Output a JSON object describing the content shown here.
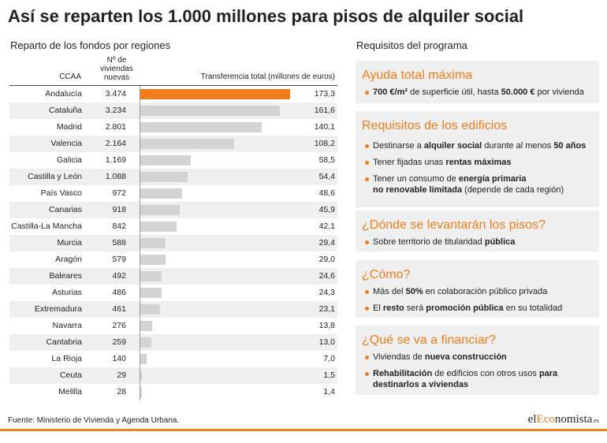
{
  "title": "Así se reparten los 1.000 millones para pisos de alquiler social",
  "colors": {
    "accent": "#f07c1b",
    "bar": "#d3d3d3",
    "row_alt": "#efefef",
    "panel": "#efefef",
    "text": "#222222"
  },
  "chart_data": {
    "type": "bar",
    "orientation": "horizontal",
    "title": "Reparto de los fondos por regiones",
    "category_label": "CCAA",
    "categories": [
      "Andalucía",
      "Cataluña",
      "Madrid",
      "Valencia",
      "Galicia",
      "Castilla y León",
      "País Vasco",
      "Canarias",
      "Castilla-La Mancha",
      "Murcia",
      "Aragón",
      "Baleares",
      "Asturias",
      "Extremadura",
      "Navarra",
      "Cantabria",
      "La Rioja",
      "Ceuta",
      "Melilla"
    ],
    "series": [
      {
        "name": "Transferencia total (millones de euros)",
        "values": [
          173.3,
          161.6,
          140.1,
          108.2,
          58.5,
          54.4,
          48.6,
          45.9,
          42.1,
          29.4,
          29.0,
          24.6,
          24.3,
          23.1,
          13.8,
          13.0,
          7.0,
          1.5,
          1.4
        ],
        "labels": [
          "173,3",
          "161,6",
          "140,1",
          "108,2",
          "58,5",
          "54,4",
          "48,6",
          "45,9",
          "42,1",
          "29,4",
          "29,0",
          "24,6",
          "24,3",
          "23,1",
          "13,8",
          "13,0",
          "7,0",
          "1,5",
          "1,4"
        ]
      }
    ],
    "table_columns": [
      {
        "name": "Nº de viviendas nuevas",
        "values": [
          3474,
          3234,
          2801,
          2164,
          1169,
          1088,
          972,
          918,
          842,
          588,
          579,
          492,
          486,
          461,
          276,
          259,
          140,
          29,
          28
        ],
        "labels": [
          "3.474",
          "3.234",
          "2.801",
          "2.164",
          "1.169",
          "1.088",
          "972",
          "918",
          "842",
          "588",
          "579",
          "492",
          "486",
          "461",
          "276",
          "259",
          "140",
          "29",
          "28"
        ]
      }
    ],
    "highlighted_category": "Andalucía",
    "grid": false
  },
  "requirements": {
    "title": "Requisitos del programa",
    "sections": [
      {
        "heading": "Ayuda total máxima",
        "bullets": [
          {
            "lines": [
              [
                {
                  "t": "700 €/m²",
                  "bold": true
                },
                {
                  "t": " de superficie útil, hasta "
                },
                {
                  "t": "50.000 €",
                  "bold": true
                },
                {
                  "t": " por vivienda"
                }
              ]
            ]
          }
        ]
      },
      {
        "heading": "Requisitos de los edificios",
        "bullets": [
          {
            "lines": [
              [
                {
                  "t": "Destinarse a "
                },
                {
                  "t": "alquiler social",
                  "bold": true
                },
                {
                  "t": " durante al menos "
                },
                {
                  "t": "50 años",
                  "bold": true
                }
              ]
            ]
          },
          {
            "lines": [
              [
                {
                  "t": "Tener fijadas unas "
                },
                {
                  "t": "rentas máximas",
                  "bold": true
                }
              ]
            ]
          },
          {
            "lines": [
              [
                {
                  "t": "Tener un consumo de "
                },
                {
                  "t": "energía primaria",
                  "bold": true
                }
              ],
              [
                {
                  "t": "no renovable limitada",
                  "bold": true
                },
                {
                  "t": " (depende de cada región)"
                }
              ]
            ]
          }
        ]
      },
      {
        "heading": "¿Dónde se levantarán los pisos?",
        "bullets": [
          {
            "lines": [
              [
                {
                  "t": "Sobre territorio de titularidad "
                },
                {
                  "t": "pública",
                  "bold": true
                }
              ]
            ]
          }
        ]
      },
      {
        "heading": "¿Cómo?",
        "bullets": [
          {
            "lines": [
              [
                {
                  "t": "Más del "
                },
                {
                  "t": "50%",
                  "bold": true
                },
                {
                  "t": " en colaboración público privada"
                }
              ]
            ]
          },
          {
            "lines": [
              [
                {
                  "t": "El "
                },
                {
                  "t": "resto",
                  "bold": true
                },
                {
                  "t": " será "
                },
                {
                  "t": "promoción pública",
                  "bold": true
                },
                {
                  "t": " en su totalidad"
                }
              ]
            ]
          }
        ]
      },
      {
        "heading": "¿Qué se va a financiar?",
        "bullets": [
          {
            "lines": [
              [
                {
                  "t": "Viviendas de "
                },
                {
                  "t": "nueva construcción",
                  "bold": true
                }
              ]
            ]
          },
          {
            "lines": [
              [
                {
                  "t": "Rehabilitación",
                  "bold": true
                },
                {
                  "t": " de edificios con otros usos "
                },
                {
                  "t": "para",
                  "bold": true
                }
              ],
              [
                {
                  "t": "destinarlos a viviendas",
                  "bold": true
                }
              ]
            ]
          }
        ]
      }
    ]
  },
  "footer": {
    "source": "Fuente: Ministerio de Vivienda y Agenda Urbana.",
    "logo": {
      "el": "el",
      "eco": "Eco",
      "nomista": "nomista",
      "tld": ".es"
    }
  }
}
